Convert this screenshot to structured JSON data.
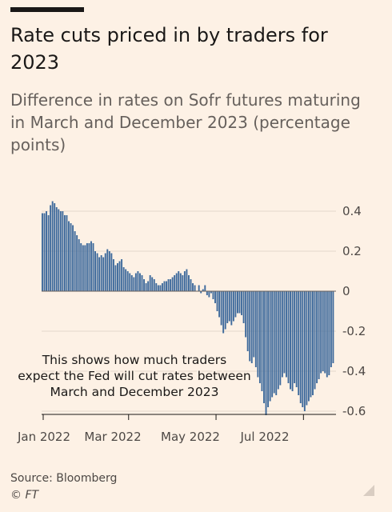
{
  "header": {
    "title": "Rate cuts priced in by traders for 2023",
    "subtitle": "Difference in rates on Sofr futures maturing in March and December 2023 (percentage points)"
  },
  "footer": {
    "source": "Source: Bloomberg",
    "credit": "© FT"
  },
  "colors": {
    "bar": "#3e6a9c",
    "grid": "#e3d6cb",
    "axis": "#1a1817",
    "background": "#fdf1e5"
  },
  "chart_data": {
    "type": "bar",
    "title": "Rate cuts priced in by traders for 2023",
    "subtitle": "Difference in rates on Sofr futures maturing in March and December 2023 (percentage points)",
    "xlabel": "",
    "ylabel": "",
    "ylim": [
      -0.6,
      0.4
    ],
    "yticks": [
      0.4,
      0.2,
      0,
      -0.2,
      -0.4,
      -0.6
    ],
    "ytick_labels": [
      "0.4",
      "0.2",
      "0",
      "-0.2",
      "-0.4",
      "-0.6"
    ],
    "xtick_labels": [
      "Jan 2022",
      "Mar 2022",
      "May 2022",
      "Jul 2022"
    ],
    "grid": true,
    "annotation": [
      "This shows how much traders",
      "expect the Fed will cut rates between",
      "March and December 2023"
    ],
    "start_date": "2022-01-03",
    "values": [
      0.39,
      0.39,
      0.4,
      0.38,
      0.43,
      0.45,
      0.44,
      0.42,
      0.41,
      0.4,
      0.4,
      0.38,
      0.38,
      0.35,
      0.34,
      0.33,
      0.3,
      0.28,
      0.26,
      0.24,
      0.23,
      0.23,
      0.24,
      0.24,
      0.25,
      0.24,
      0.2,
      0.19,
      0.17,
      0.18,
      0.17,
      0.19,
      0.21,
      0.2,
      0.19,
      0.16,
      0.13,
      0.14,
      0.15,
      0.16,
      0.12,
      0.11,
      0.1,
      0.09,
      0.08,
      0.07,
      0.09,
      0.1,
      0.09,
      0.08,
      0.06,
      0.04,
      0.05,
      0.08,
      0.07,
      0.06,
      0.04,
      0.03,
      0.03,
      0.04,
      0.05,
      0.05,
      0.06,
      0.06,
      0.07,
      0.08,
      0.09,
      0.1,
      0.09,
      0.08,
      0.1,
      0.11,
      0.08,
      0.06,
      0.04,
      0.03,
      0.0,
      0.03,
      -0.01,
      0.01,
      0.03,
      -0.02,
      -0.03,
      -0.01,
      -0.04,
      -0.06,
      -0.1,
      -0.13,
      -0.17,
      -0.21,
      -0.19,
      -0.16,
      -0.15,
      -0.17,
      -0.15,
      -0.13,
      -0.11,
      -0.11,
      -0.12,
      -0.16,
      -0.23,
      -0.3,
      -0.35,
      -0.36,
      -0.33,
      -0.38,
      -0.43,
      -0.46,
      -0.5,
      -0.56,
      -0.62,
      -0.58,
      -0.55,
      -0.53,
      -0.51,
      -0.52,
      -0.49,
      -0.47,
      -0.43,
      -0.41,
      -0.43,
      -0.46,
      -0.49,
      -0.5,
      -0.46,
      -0.48,
      -0.52,
      -0.56,
      -0.58,
      -0.6,
      -0.57,
      -0.55,
      -0.53,
      -0.52,
      -0.49,
      -0.46,
      -0.44,
      -0.41,
      -0.4,
      -0.41,
      -0.43,
      -0.42,
      -0.38,
      -0.36
    ]
  }
}
